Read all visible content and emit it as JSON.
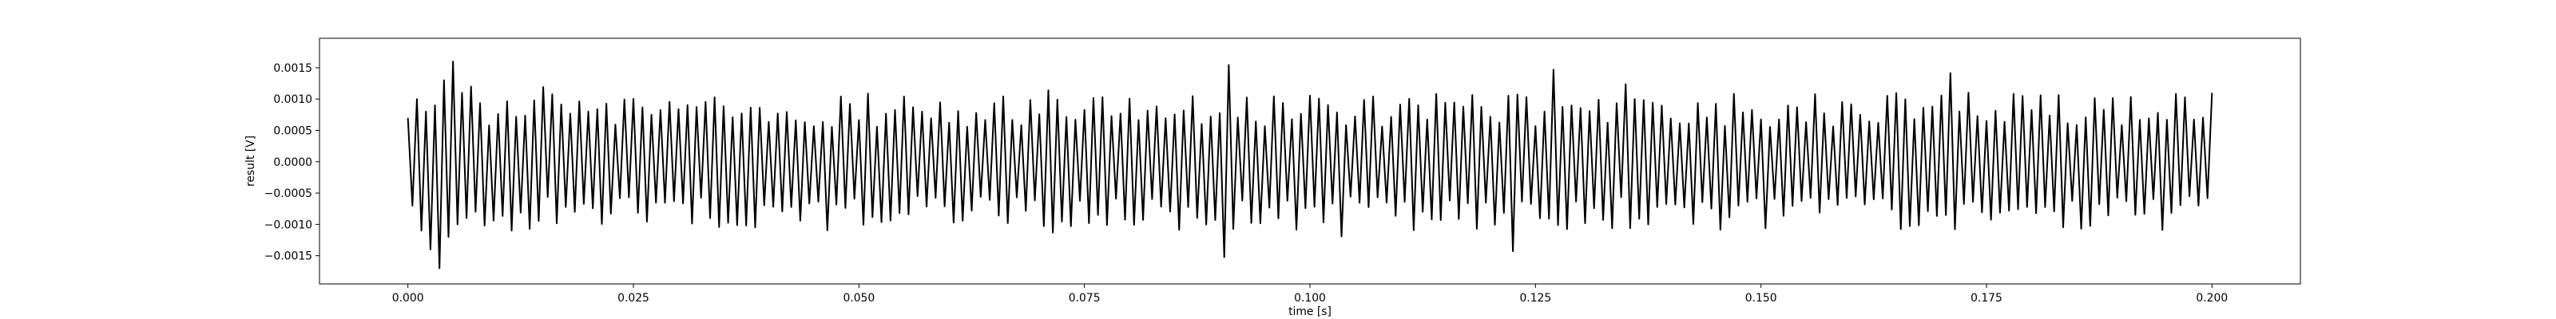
{
  "chart_data": {
    "type": "line",
    "title": "",
    "xlabel": "time [s]",
    "ylabel": "result [V]",
    "xlim": [
      -0.0098,
      0.2098
    ],
    "ylim": [
      -0.00195,
      0.00197
    ],
    "x_ticks": [
      0.0,
      0.025,
      0.05,
      0.075,
      0.1,
      0.125,
      0.15,
      0.175,
      0.2
    ],
    "x_tick_labels": [
      "0.000",
      "0.025",
      "0.050",
      "0.075",
      "0.100",
      "0.125",
      "0.150",
      "0.175",
      "0.200"
    ],
    "y_ticks": [
      -0.0015,
      -0.001,
      -0.0005,
      0.0,
      0.0005,
      0.001,
      0.0015
    ],
    "y_tick_labels": [
      "−0.0015",
      "−0.0010",
      "−0.0005",
      "0.0000",
      "0.0005",
      "0.0010",
      "0.0015"
    ],
    "grid": false,
    "series": [
      {
        "color": "#000000",
        "x_start": 0.0,
        "x_end": 0.2,
        "approx_zero_crossing_frequency_hz": 1000,
        "sample_values": [
          0.0007,
          -0.0007,
          0.001,
          -0.0011,
          0.0008,
          -0.0014,
          0.0009,
          -0.0017,
          0.0013,
          -0.0012,
          0.0016,
          -0.001,
          0.0011,
          -0.0009,
          0.0012,
          -0.0008
        ]
      }
    ]
  },
  "colors": {
    "line": "#000000",
    "axes": "#000000",
    "background": "#ffffff"
  }
}
